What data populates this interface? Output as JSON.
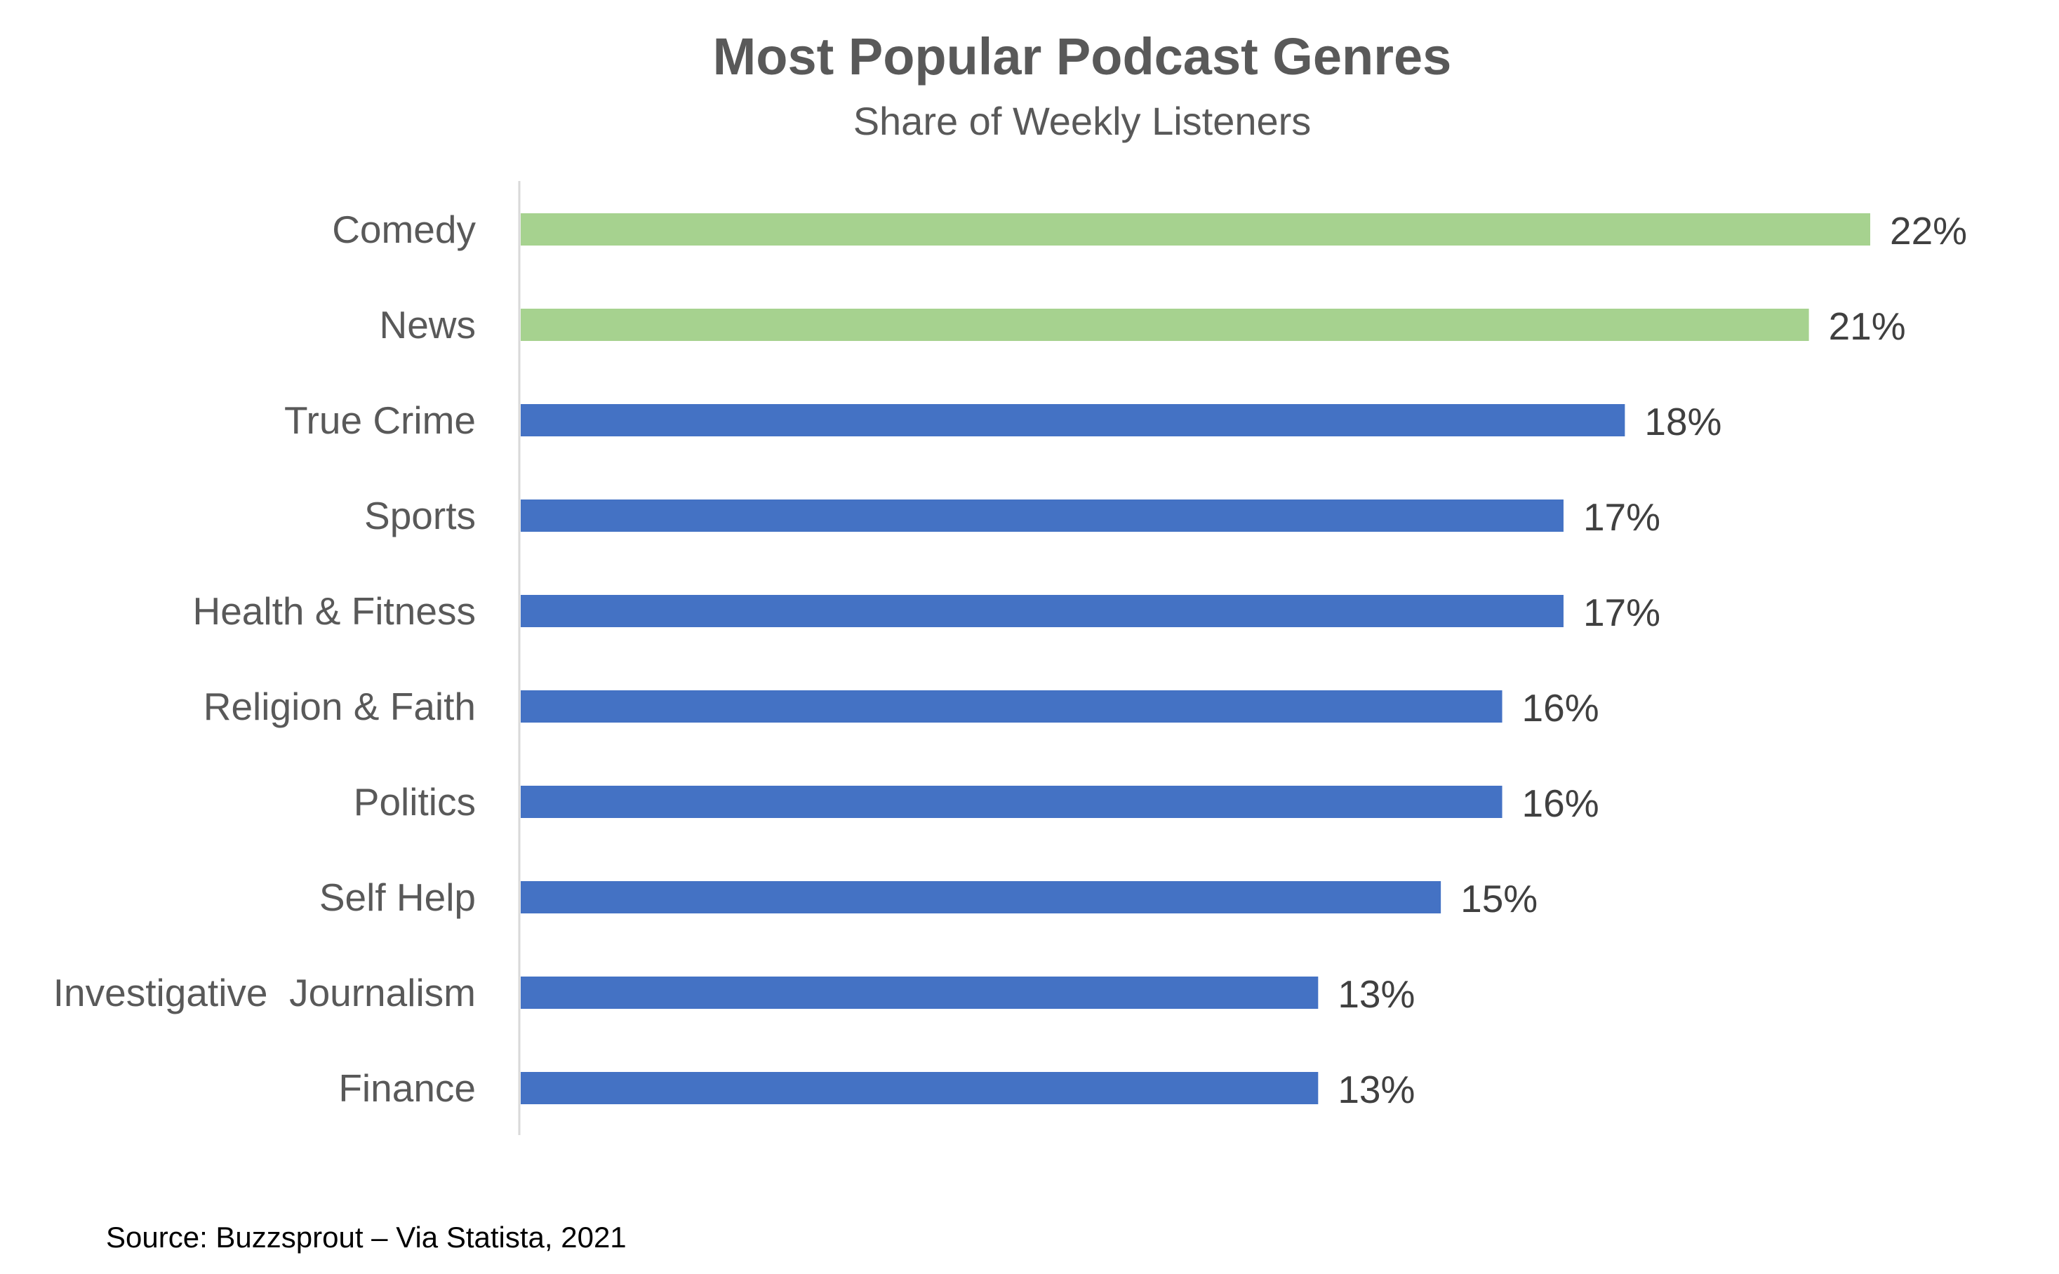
{
  "chart_data": {
    "type": "bar",
    "orientation": "horizontal",
    "title": "Most Popular Podcast Genres",
    "subtitle": "Share of Weekly Listeners",
    "categories": [
      "Comedy",
      "News",
      "True Crime",
      "Sports",
      "Health & Fitness",
      "Religion & Faith",
      "Politics",
      "Self Help",
      "Investigative  Journalism",
      "Finance"
    ],
    "values": [
      22,
      21,
      18,
      17,
      17,
      16,
      16,
      15,
      13,
      13
    ],
    "data_labels": [
      "22%",
      "21%",
      "18%",
      "17%",
      "17%",
      "16%",
      "16%",
      "15%",
      "13%",
      "13%"
    ],
    "highlight_count": 2,
    "colors": {
      "highlight": "#A6D28F",
      "default": "#4472C4",
      "axis": "#D9D9D9"
    },
    "xlim": [
      0,
      22
    ],
    "grid": false,
    "legend": "none"
  },
  "source": "Source:  Buzzsprout – Via Statista, 2021"
}
